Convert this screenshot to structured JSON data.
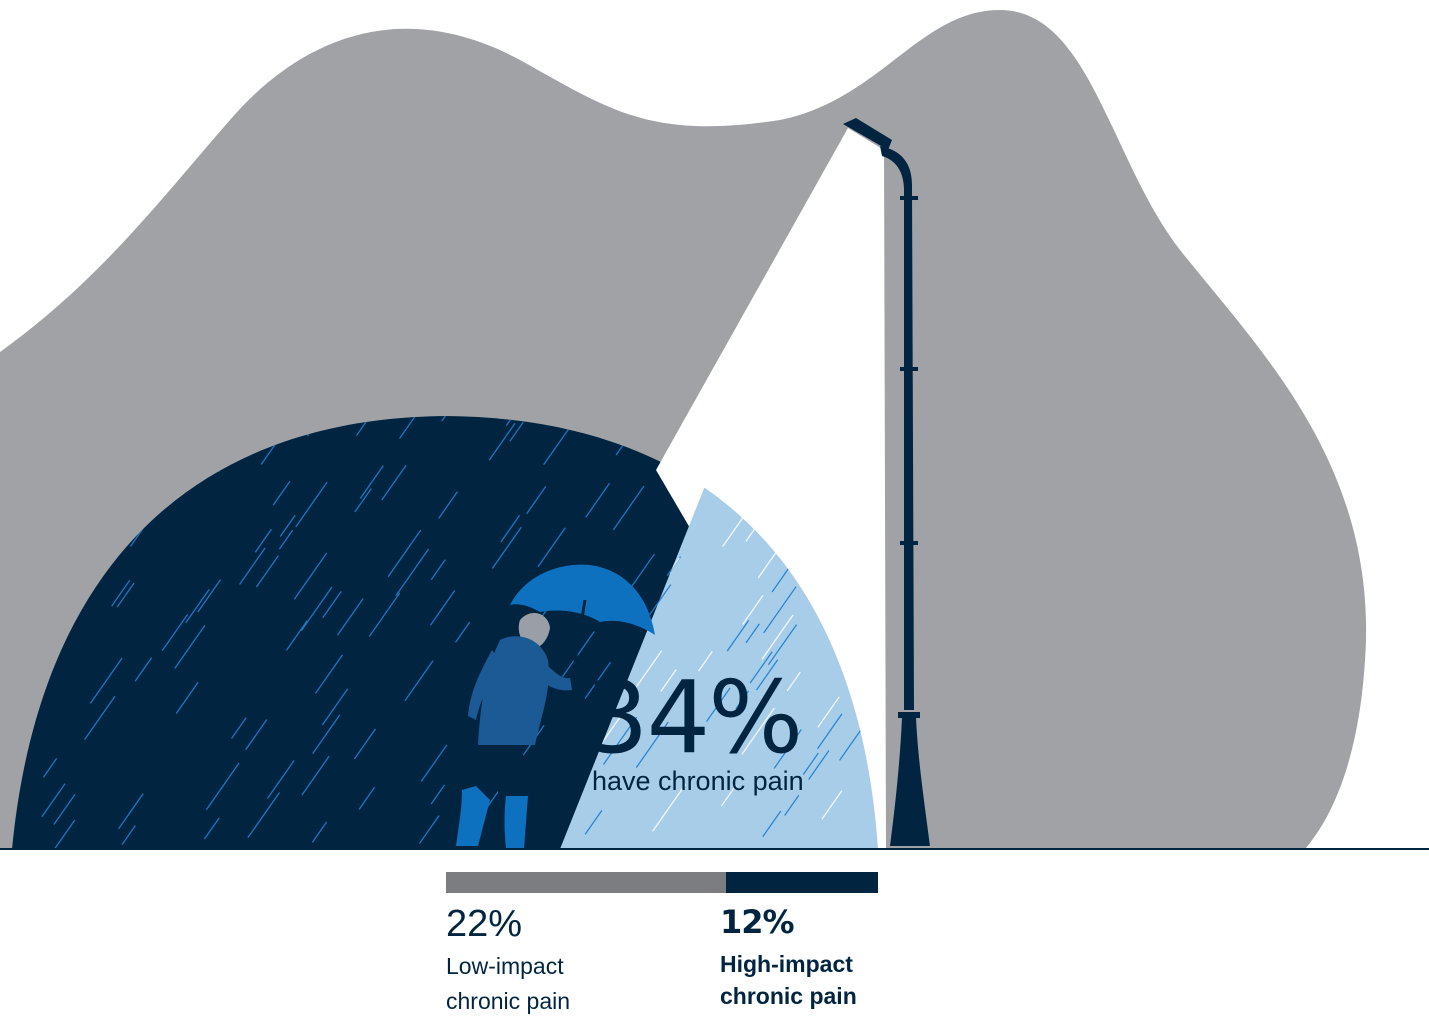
{
  "headline": {
    "value": "34%",
    "caption": "have chronic pain"
  },
  "breakdown": {
    "low": {
      "percent": 22,
      "value": "22%",
      "label_line1": "Low-impact",
      "label_line2": "chronic pain"
    },
    "high": {
      "percent": 12,
      "value": "12%",
      "label_line1": "High-impact",
      "label_line2": "chronic pain"
    }
  },
  "icons": {
    "lamp": "street-lamp-icon",
    "person": "person-with-umbrella-icon"
  },
  "colors": {
    "hill": "#a1a2a6",
    "navy": "#012541",
    "light_blue": "#a7cde9",
    "umbrella": "#0e71c0",
    "rain_dark": "#1e7fd0",
    "rain_light": "#ffffff",
    "bar_low": "#7c7d81",
    "bar_high": "#012541",
    "text": "#012541",
    "text_low": "#012541"
  }
}
